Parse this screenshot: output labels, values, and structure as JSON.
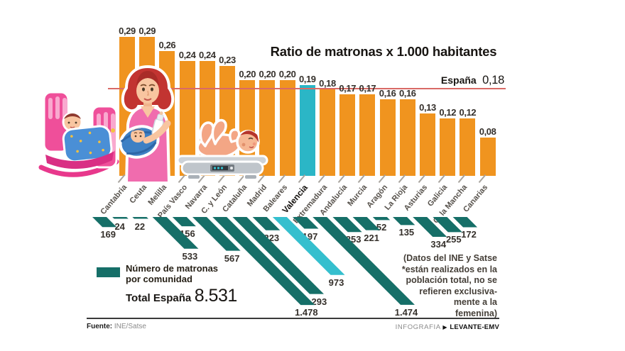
{
  "chart_data": {
    "type": "bar",
    "title": "Ratio de matronas x 1.000 habitantes",
    "categories": [
      "Cantabria",
      "Ceuta",
      "Melilla",
      "País Vasco",
      "Navarra",
      "C. y León",
      "Cataluña",
      "Madrid",
      "Baleares",
      "Valencia",
      "Extremadura",
      "Andalucía",
      "Murcia",
      "Aragón",
      "La Rioja",
      "Asturias",
      "Galicia",
      "C. la Mancha",
      "Canarias"
    ],
    "series": [
      {
        "name": "Ratio de matronas x 1.000 habitantes",
        "values": [
          0.29,
          0.29,
          0.26,
          0.24,
          0.24,
          0.23,
          0.2,
          0.2,
          0.2,
          0.19,
          0.18,
          0.17,
          0.17,
          0.16,
          0.16,
          0.13,
          0.12,
          0.12,
          0.08
        ],
        "labels": [
          "0,29",
          "0,29",
          "0,26",
          "0,24",
          "0,24",
          "0,23",
          "0,20",
          "0,20",
          "0,20",
          "0,19",
          "0,18",
          "0,17",
          "0,17",
          "0,16",
          "0,16",
          "0,13",
          "0,12",
          "0,12",
          "0,08"
        ]
      },
      {
        "name": "Número de matronas por comunidad",
        "values": [
          169,
          24,
          22,
          533,
          156,
          567,
          1478,
          1293,
          223,
          973,
          197,
          1474,
          253,
          221,
          52,
          135,
          334,
          255,
          172
        ],
        "labels": [
          "169",
          "24",
          "22",
          "533",
          "156",
          "567",
          "1.478",
          "1.293",
          "223",
          "973",
          "197",
          "1.474",
          "253",
          "221",
          "52",
          "135",
          "334",
          "255",
          "172"
        ]
      }
    ],
    "highlight_category": "Valencia",
    "reference_line": {
      "label": "España",
      "value": 0.18,
      "value_label": "0,18"
    },
    "totals": {
      "label": "Total España",
      "value": 8531,
      "value_label": "8.531"
    },
    "ylim": [
      0,
      0.3
    ],
    "grid": false,
    "legend_position": "bottom-left"
  },
  "legend": {
    "line1": "Número de matronas",
    "line2": "por comunidad"
  },
  "note": {
    "lines": [
      "(Datos del INE y Satse",
      "*están realizados en la",
      "población total, no se",
      "refieren exclusiva-",
      "mente a la",
      "femenina)"
    ]
  },
  "footer": {
    "source_label": "Fuente:",
    "source_value": "INE/Satse",
    "credit_label": "INFOGRAFIA",
    "credit_arrow": "▶",
    "credit_brand": "LEVANTE-EMV"
  },
  "colors": {
    "bar": "#f0941f",
    "bar_highlight": "#2bb6c6",
    "diag": "#166f68",
    "diag_highlight": "#35bfce",
    "reference_line": "#d96a66",
    "legend_swatch": "#166f68",
    "cradle_pink": "#ef4f9a",
    "blanket_blue": "#4a8fd6"
  },
  "illustrations": [
    "cradle-baby-illustration",
    "midwife-with-baby-illustration",
    "baby-on-scale-illustration"
  ]
}
